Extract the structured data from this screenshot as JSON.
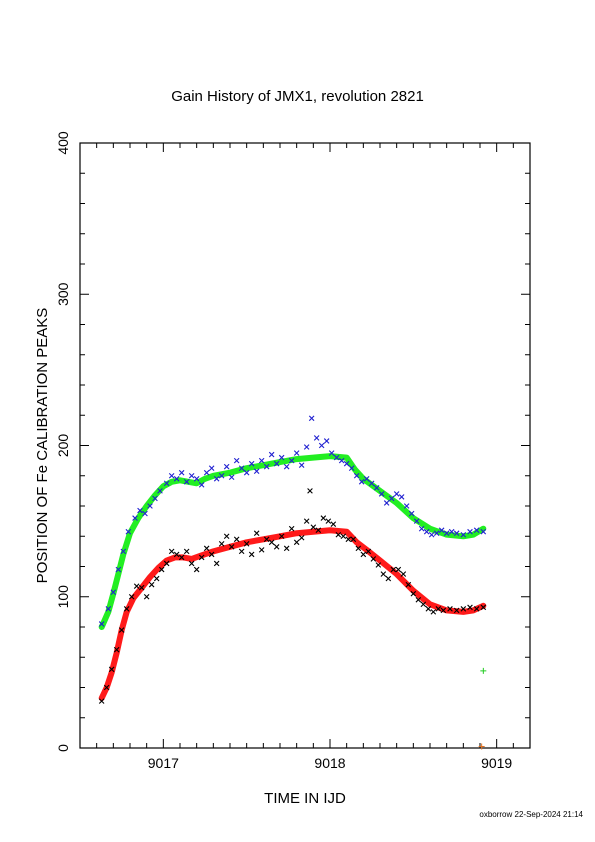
{
  "chart_data": {
    "type": "scatter",
    "title": "Gain History of JMX1, revolution 2821",
    "xlabel": "TIME IN IJD",
    "ylabel": "POSITION OF Fe CALIBRATION PEAKS",
    "xlim": [
      9016.5,
      9019.2
    ],
    "ylim": [
      0,
      400
    ],
    "xticks": [
      9017,
      9018,
      9019
    ],
    "yticks": [
      0,
      100,
      200,
      300,
      400
    ],
    "grid": false,
    "footer": "oxborrow 22-Sep-2024 21:14",
    "colors": {
      "upper_points": "#2020d0",
      "upper_fit": "#22ee22",
      "lower_points": "#000000",
      "lower_fit": "#ff1a1a",
      "marker_green": "#22cc22",
      "marker_orange": "#e07020"
    },
    "series": [
      {
        "role": "upper-points",
        "style": "x-marker",
        "color": "#2020d0",
        "points": [
          [
            9016.63,
            82
          ],
          [
            9016.67,
            92
          ],
          [
            9016.7,
            103
          ],
          [
            9016.73,
            118
          ],
          [
            9016.76,
            130
          ],
          [
            9016.79,
            143
          ],
          [
            9016.83,
            152
          ],
          [
            9016.86,
            157
          ],
          [
            9016.89,
            155
          ],
          [
            9016.92,
            160
          ],
          [
            9016.95,
            165
          ],
          [
            9016.98,
            170
          ],
          [
            9017.02,
            175
          ],
          [
            9017.05,
            180
          ],
          [
            9017.08,
            178
          ],
          [
            9017.11,
            182
          ],
          [
            9017.14,
            176
          ],
          [
            9017.17,
            180
          ],
          [
            9017.2,
            178
          ],
          [
            9017.23,
            174
          ],
          [
            9017.26,
            182
          ],
          [
            9017.29,
            185
          ],
          [
            9017.32,
            178
          ],
          [
            9017.35,
            180
          ],
          [
            9017.38,
            186
          ],
          [
            9017.41,
            179
          ],
          [
            9017.44,
            190
          ],
          [
            9017.47,
            185
          ],
          [
            9017.5,
            182
          ],
          [
            9017.53,
            188
          ],
          [
            9017.56,
            183
          ],
          [
            9017.59,
            190
          ],
          [
            9017.62,
            186
          ],
          [
            9017.65,
            194
          ],
          [
            9017.68,
            188
          ],
          [
            9017.71,
            192
          ],
          [
            9017.74,
            186
          ],
          [
            9017.77,
            190
          ],
          [
            9017.8,
            195
          ],
          [
            9017.83,
            187
          ],
          [
            9017.86,
            199
          ],
          [
            9017.89,
            218
          ],
          [
            9017.92,
            205
          ],
          [
            9017.95,
            200
          ],
          [
            9017.98,
            203
          ],
          [
            9018.01,
            195
          ],
          [
            9018.04,
            192
          ],
          [
            9018.07,
            190
          ],
          [
            9018.1,
            188
          ],
          [
            9018.13,
            185
          ],
          [
            9018.16,
            180
          ],
          [
            9018.19,
            176
          ],
          [
            9018.22,
            178
          ],
          [
            9018.25,
            175
          ],
          [
            9018.28,
            172
          ],
          [
            9018.31,
            168
          ],
          [
            9018.34,
            162
          ],
          [
            9018.37,
            165
          ],
          [
            9018.4,
            168
          ],
          [
            9018.43,
            166
          ],
          [
            9018.46,
            160
          ],
          [
            9018.49,
            155
          ],
          [
            9018.52,
            150
          ],
          [
            9018.55,
            145
          ],
          [
            9018.58,
            143
          ],
          [
            9018.61,
            141
          ],
          [
            9018.64,
            142
          ],
          [
            9018.67,
            144
          ],
          [
            9018.7,
            142
          ],
          [
            9018.73,
            143
          ],
          [
            9018.76,
            142
          ],
          [
            9018.8,
            141
          ],
          [
            9018.84,
            143
          ],
          [
            9018.88,
            144
          ],
          [
            9018.92,
            143
          ]
        ]
      },
      {
        "role": "upper-fit",
        "style": "thick-line",
        "color": "#22ee22",
        "points": [
          [
            9016.63,
            80
          ],
          [
            9016.67,
            90
          ],
          [
            9016.7,
            102
          ],
          [
            9016.73,
            115
          ],
          [
            9016.76,
            128
          ],
          [
            9016.8,
            142
          ],
          [
            9016.85,
            152
          ],
          [
            9016.9,
            160
          ],
          [
            9016.95,
            167
          ],
          [
            9017.0,
            173
          ],
          [
            9017.05,
            176
          ],
          [
            9017.1,
            177
          ],
          [
            9017.15,
            176
          ],
          [
            9017.2,
            175
          ],
          [
            9017.25,
            178
          ],
          [
            9017.3,
            180
          ],
          [
            9017.4,
            182
          ],
          [
            9017.5,
            185
          ],
          [
            9017.6,
            187
          ],
          [
            9017.7,
            189
          ],
          [
            9017.8,
            191
          ],
          [
            9017.9,
            192
          ],
          [
            9018.0,
            193
          ],
          [
            9018.1,
            192
          ],
          [
            9018.15,
            184
          ],
          [
            9018.2,
            178
          ],
          [
            9018.3,
            170
          ],
          [
            9018.4,
            162
          ],
          [
            9018.5,
            152
          ],
          [
            9018.6,
            145
          ],
          [
            9018.7,
            141
          ],
          [
            9018.8,
            140
          ],
          [
            9018.86,
            141
          ],
          [
            9018.92,
            145
          ]
        ]
      },
      {
        "role": "lower-points",
        "style": "x-marker",
        "color": "#000000",
        "points": [
          [
            9016.63,
            31
          ],
          [
            9016.66,
            40
          ],
          [
            9016.69,
            52
          ],
          [
            9016.72,
            65
          ],
          [
            9016.75,
            78
          ],
          [
            9016.78,
            92
          ],
          [
            9016.81,
            100
          ],
          [
            9016.84,
            107
          ],
          [
            9016.87,
            106
          ],
          [
            9016.9,
            100
          ],
          [
            9016.93,
            108
          ],
          [
            9016.96,
            112
          ],
          [
            9016.99,
            118
          ],
          [
            9017.02,
            122
          ],
          [
            9017.05,
            130
          ],
          [
            9017.08,
            128
          ],
          [
            9017.11,
            126
          ],
          [
            9017.14,
            130
          ],
          [
            9017.17,
            122
          ],
          [
            9017.2,
            118
          ],
          [
            9017.23,
            126
          ],
          [
            9017.26,
            132
          ],
          [
            9017.29,
            128
          ],
          [
            9017.32,
            122
          ],
          [
            9017.35,
            135
          ],
          [
            9017.38,
            140
          ],
          [
            9017.41,
            133
          ],
          [
            9017.44,
            138
          ],
          [
            9017.47,
            130
          ],
          [
            9017.5,
            135
          ],
          [
            9017.53,
            128
          ],
          [
            9017.56,
            142
          ],
          [
            9017.59,
            131
          ],
          [
            9017.62,
            138
          ],
          [
            9017.65,
            136
          ],
          [
            9017.68,
            133
          ],
          [
            9017.71,
            140
          ],
          [
            9017.74,
            132
          ],
          [
            9017.77,
            145
          ],
          [
            9017.8,
            136
          ],
          [
            9017.83,
            139
          ],
          [
            9017.86,
            150
          ],
          [
            9017.88,
            170
          ],
          [
            9017.9,
            146
          ],
          [
            9017.93,
            144
          ],
          [
            9017.96,
            152
          ],
          [
            9017.99,
            150
          ],
          [
            9018.02,
            148
          ],
          [
            9018.05,
            141
          ],
          [
            9018.08,
            140
          ],
          [
            9018.11,
            138
          ],
          [
            9018.14,
            138
          ],
          [
            9018.17,
            132
          ],
          [
            9018.2,
            128
          ],
          [
            9018.23,
            130
          ],
          [
            9018.26,
            125
          ],
          [
            9018.29,
            121
          ],
          [
            9018.32,
            115
          ],
          [
            9018.35,
            112
          ],
          [
            9018.38,
            118
          ],
          [
            9018.41,
            118
          ],
          [
            9018.44,
            115
          ],
          [
            9018.47,
            108
          ],
          [
            9018.5,
            102
          ],
          [
            9018.53,
            98
          ],
          [
            9018.56,
            95
          ],
          [
            9018.59,
            92
          ],
          [
            9018.62,
            90
          ],
          [
            9018.65,
            92
          ],
          [
            9018.68,
            91
          ],
          [
            9018.72,
            92
          ],
          [
            9018.76,
            91
          ],
          [
            9018.8,
            92
          ],
          [
            9018.84,
            93
          ],
          [
            9018.88,
            92
          ],
          [
            9018.92,
            93
          ]
        ]
      },
      {
        "role": "lower-fit",
        "style": "thick-line",
        "color": "#ff1a1a",
        "points": [
          [
            9016.63,
            33
          ],
          [
            9016.66,
            40
          ],
          [
            9016.69,
            50
          ],
          [
            9016.72,
            63
          ],
          [
            9016.75,
            78
          ],
          [
            9016.78,
            90
          ],
          [
            9016.82,
            99
          ],
          [
            9016.87,
            106
          ],
          [
            9016.92,
            113
          ],
          [
            9016.97,
            119
          ],
          [
            9017.02,
            124
          ],
          [
            9017.07,
            126
          ],
          [
            9017.12,
            126
          ],
          [
            9017.17,
            125
          ],
          [
            9017.22,
            127
          ],
          [
            9017.3,
            130
          ],
          [
            9017.4,
            133
          ],
          [
            9017.5,
            136
          ],
          [
            9017.6,
            138
          ],
          [
            9017.7,
            140
          ],
          [
            9017.8,
            142
          ],
          [
            9017.9,
            143
          ],
          [
            9018.0,
            144
          ],
          [
            9018.1,
            143
          ],
          [
            9018.16,
            136
          ],
          [
            9018.22,
            131
          ],
          [
            9018.3,
            124
          ],
          [
            9018.4,
            115
          ],
          [
            9018.5,
            104
          ],
          [
            9018.6,
            95
          ],
          [
            9018.7,
            91
          ],
          [
            9018.8,
            90
          ],
          [
            9018.86,
            91
          ],
          [
            9018.92,
            94
          ]
        ]
      },
      {
        "role": "green-marker",
        "style": "plus-marker",
        "color": "#22cc22",
        "points": [
          [
            9018.92,
            51
          ]
        ]
      },
      {
        "role": "orange-marker",
        "style": "plus-marker",
        "color": "#e07020",
        "points": [
          [
            9018.91,
            1
          ]
        ]
      }
    ]
  }
}
